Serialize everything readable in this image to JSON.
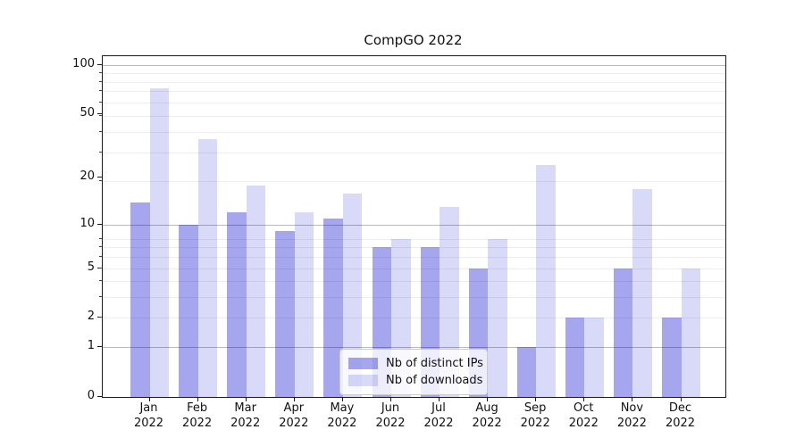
{
  "chart_data": {
    "type": "bar",
    "title": "CompGO 2022",
    "categories": [
      "Jan",
      "Feb",
      "Mar",
      "Apr",
      "May",
      "Jun",
      "Jul",
      "Aug",
      "Sep",
      "Oct",
      "Nov",
      "Dec"
    ],
    "category_year": "2022",
    "series": [
      {
        "name": "Nb of distinct IPs",
        "color": "#0000cd",
        "alpha": 0.35,
        "values": [
          14,
          10,
          12,
          9,
          11,
          7,
          7,
          5,
          1,
          2,
          5,
          2
        ]
      },
      {
        "name": "Nb of downloads",
        "color": "#0000cd",
        "alpha": 0.15,
        "values": [
          72,
          35,
          18,
          12,
          16,
          8,
          13,
          8,
          24,
          2,
          17,
          5
        ]
      }
    ],
    "yscale": "log1p",
    "yticks": [
      0,
      1,
      2,
      5,
      10,
      20,
      50,
      100
    ],
    "ylim": [
      0,
      113
    ],
    "grid": true,
    "major_grid_values": [
      1,
      10,
      100
    ],
    "minor_grid_values": [
      2,
      3,
      4,
      5,
      6,
      7,
      8,
      19,
      29,
      39,
      49,
      59,
      69,
      79,
      89
    ],
    "legend_position": "lower center",
    "colors": {
      "major_grid": "#b9b9b9",
      "minor_grid": "#ededed",
      "spine": "#1a1a1a",
      "background": "#ffffff"
    }
  }
}
